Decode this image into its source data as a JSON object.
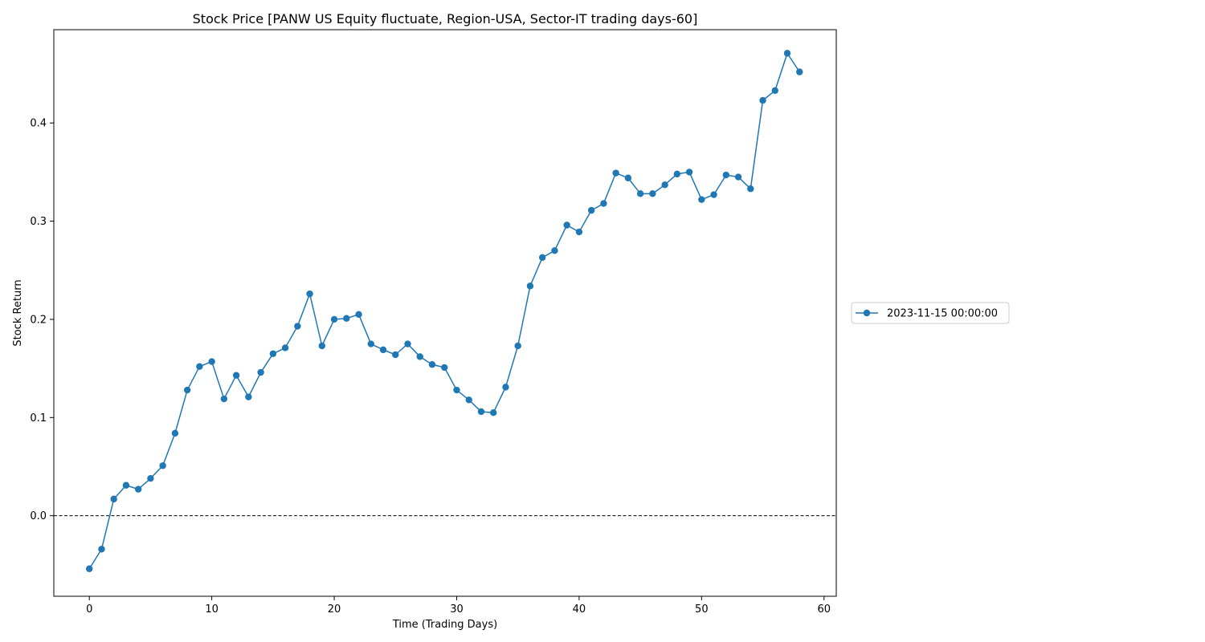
{
  "chart_data": {
    "type": "line",
    "title": "Stock Price [PANW US Equity fluctuate, Region-USA, Sector-IT trading days-60]",
    "xlabel": "Time (Trading Days)",
    "ylabel": "Stock Return",
    "xlim": [
      -2.9,
      61
    ],
    "ylim": [
      -0.082,
      0.495
    ],
    "xticks": [
      0,
      10,
      20,
      30,
      40,
      50,
      60
    ],
    "xtick_labels": [
      "0",
      "10",
      "20",
      "30",
      "40",
      "50",
      "60"
    ],
    "yticks": [
      0.0,
      0.1,
      0.2,
      0.3,
      0.4
    ],
    "ytick_labels": [
      "0.0",
      "0.1",
      "0.2",
      "0.3",
      "0.4"
    ],
    "reference_line": {
      "y": 0,
      "style": "dashed",
      "color": "#000000"
    },
    "grid": false,
    "legend_position": "right-center",
    "series": [
      {
        "name": "2023-11-15 00:00:00",
        "color": "#1f77b4",
        "marker": "circle",
        "x": [
          0,
          1,
          2,
          3,
          4,
          5,
          6,
          7,
          8,
          9,
          10,
          11,
          12,
          13,
          14,
          15,
          16,
          17,
          18,
          19,
          20,
          21,
          22,
          23,
          24,
          25,
          26,
          27,
          28,
          29,
          30,
          31,
          32,
          33,
          34,
          35,
          36,
          37,
          38,
          39,
          40,
          41,
          42,
          43,
          44,
          45,
          46,
          47,
          48,
          49,
          50,
          51,
          52,
          53,
          54,
          55,
          56,
          57,
          58
        ],
        "values": [
          -0.054,
          -0.034,
          0.017,
          0.031,
          0.027,
          0.038,
          0.051,
          0.084,
          0.128,
          0.152,
          0.157,
          0.119,
          0.143,
          0.121,
          0.146,
          0.165,
          0.171,
          0.193,
          0.226,
          0.173,
          0.2,
          0.201,
          0.205,
          0.175,
          0.169,
          0.164,
          0.175,
          0.162,
          0.154,
          0.151,
          0.128,
          0.118,
          0.106,
          0.105,
          0.131,
          0.173,
          0.234,
          0.263,
          0.27,
          0.296,
          0.289,
          0.311,
          0.318,
          0.349,
          0.344,
          0.328,
          0.328,
          0.337,
          0.348,
          0.35,
          0.322,
          0.327,
          0.347,
          0.345,
          0.333,
          0.423,
          0.433,
          0.471,
          0.452
        ]
      }
    ]
  }
}
